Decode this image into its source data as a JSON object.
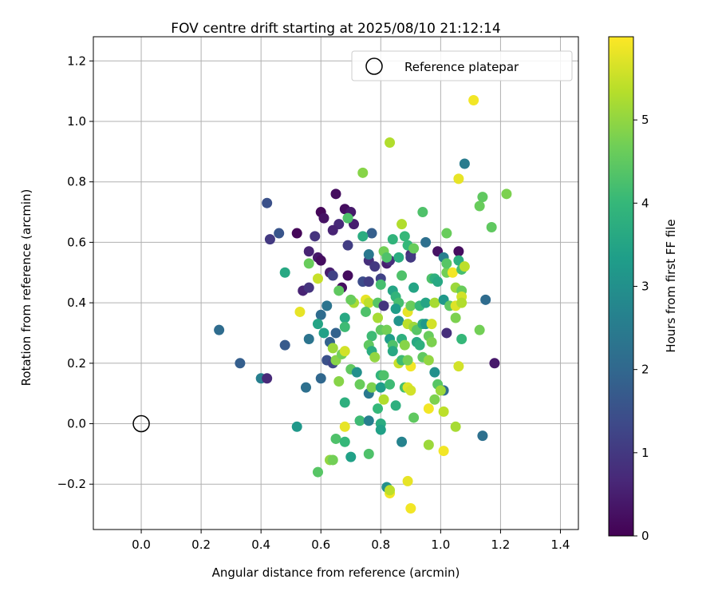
{
  "chart_data": {
    "type": "scatter",
    "title": "FOV centre drift starting at 2025/08/10 21:12:14",
    "xlabel": "Angular distance from reference (arcmin)",
    "ylabel": "Rotation from reference (arcmin)",
    "xlim": [
      -0.16,
      1.46
    ],
    "ylim": [
      -0.35,
      1.28
    ],
    "xticks": [
      0.0,
      0.2,
      0.4,
      0.6,
      0.8,
      1.0,
      1.2,
      1.4
    ],
    "xtick_labels": [
      "0.0",
      "0.2",
      "0.4",
      "0.6",
      "0.8",
      "1.0",
      "1.2",
      "1.4"
    ],
    "yticks": [
      -0.2,
      0.0,
      0.2,
      0.4,
      0.6,
      0.8,
      1.0,
      1.2
    ],
    "ytick_labels": [
      "−0.2",
      "0.0",
      "0.2",
      "0.4",
      "0.6",
      "0.8",
      "1.0",
      "1.2"
    ],
    "grid": true,
    "legend": {
      "placement": "top-right",
      "entries": [
        "Reference platepar"
      ]
    },
    "reference_point": {
      "x": 0.0,
      "y": 0.0,
      "label": "Reference platepar"
    },
    "colorbar": {
      "label": "Hours from first FF file",
      "colormap": "viridis",
      "range": [
        0,
        6
      ],
      "ticks": [
        0,
        1,
        2,
        3,
        4,
        5
      ],
      "tick_labels": [
        "0",
        "1",
        "2",
        "3",
        "4",
        "5"
      ]
    },
    "colormap_stops": [
      "#440154",
      "#482878",
      "#3e4989",
      "#31688e",
      "#26828e",
      "#1f9e89",
      "#35b779",
      "#6ece58",
      "#b5de2b",
      "#fde725"
    ],
    "points": [
      {
        "x": 0.65,
        "y": 0.76,
        "c": 0.2
      },
      {
        "x": 0.6,
        "y": 0.7,
        "c": 0.1
      },
      {
        "x": 0.61,
        "y": 0.68,
        "c": 0.3
      },
      {
        "x": 0.68,
        "y": 0.71,
        "c": 0.2
      },
      {
        "x": 0.7,
        "y": 0.7,
        "c": 0.4
      },
      {
        "x": 0.66,
        "y": 0.66,
        "c": 0.7
      },
      {
        "x": 0.71,
        "y": 0.66,
        "c": 0.5
      },
      {
        "x": 0.64,
        "y": 0.64,
        "c": 0.6
      },
      {
        "x": 0.52,
        "y": 0.63,
        "c": 0.1
      },
      {
        "x": 0.58,
        "y": 0.62,
        "c": 0.9
      },
      {
        "x": 0.43,
        "y": 0.61,
        "c": 1.0
      },
      {
        "x": 0.46,
        "y": 0.63,
        "c": 1.6
      },
      {
        "x": 0.42,
        "y": 0.73,
        "c": 1.5
      },
      {
        "x": 0.69,
        "y": 0.59,
        "c": 1.1
      },
      {
        "x": 0.56,
        "y": 0.57,
        "c": 0.6
      },
      {
        "x": 0.59,
        "y": 0.55,
        "c": 0.4
      },
      {
        "x": 0.6,
        "y": 0.54,
        "c": 0.2
      },
      {
        "x": 0.63,
        "y": 0.5,
        "c": 0.5
      },
      {
        "x": 0.64,
        "y": 0.49,
        "c": 1.2
      },
      {
        "x": 0.69,
        "y": 0.49,
        "c": 0.2
      },
      {
        "x": 0.74,
        "y": 0.47,
        "c": 1.4
      },
      {
        "x": 0.76,
        "y": 0.47,
        "c": 1.1
      },
      {
        "x": 0.76,
        "y": 0.54,
        "c": 0.8
      },
      {
        "x": 0.78,
        "y": 0.52,
        "c": 1.0
      },
      {
        "x": 0.77,
        "y": 0.63,
        "c": 1.8
      },
      {
        "x": 0.76,
        "y": 0.56,
        "c": 2.4
      },
      {
        "x": 0.8,
        "y": 0.48,
        "c": 1.2
      },
      {
        "x": 0.82,
        "y": 0.53,
        "c": 0.5
      },
      {
        "x": 0.83,
        "y": 0.54,
        "c": 0.8
      },
      {
        "x": 0.9,
        "y": 0.56,
        "c": 0.7
      },
      {
        "x": 0.9,
        "y": 0.55,
        "c": 1.0
      },
      {
        "x": 0.95,
        "y": 0.6,
        "c": 2.2
      },
      {
        "x": 0.99,
        "y": 0.57,
        "c": 0.3
      },
      {
        "x": 1.01,
        "y": 0.55,
        "c": 2.6
      },
      {
        "x": 1.06,
        "y": 0.57,
        "c": 0.2
      },
      {
        "x": 1.08,
        "y": 0.86,
        "c": 2.5
      },
      {
        "x": 1.15,
        "y": 0.41,
        "c": 2.1
      },
      {
        "x": 1.18,
        "y": 0.2,
        "c": 0.4
      },
      {
        "x": 1.14,
        "y": -0.04,
        "c": 2.2
      },
      {
        "x": 1.01,
        "y": 0.11,
        "c": 2.1
      },
      {
        "x": 1.02,
        "y": 0.3,
        "c": 0.8
      },
      {
        "x": 0.54,
        "y": 0.44,
        "c": 0.6
      },
      {
        "x": 0.56,
        "y": 0.45,
        "c": 0.9
      },
      {
        "x": 0.62,
        "y": 0.39,
        "c": 2.3
      },
      {
        "x": 0.6,
        "y": 0.36,
        "c": 2.1
      },
      {
        "x": 0.65,
        "y": 0.3,
        "c": 1.9
      },
      {
        "x": 0.67,
        "y": 0.45,
        "c": 0.2
      },
      {
        "x": 0.26,
        "y": 0.31,
        "c": 2.1
      },
      {
        "x": 0.33,
        "y": 0.2,
        "c": 1.8
      },
      {
        "x": 0.4,
        "y": 0.15,
        "c": 2.6
      },
      {
        "x": 0.42,
        "y": 0.15,
        "c": 0.7
      },
      {
        "x": 0.48,
        "y": 0.26,
        "c": 1.7
      },
      {
        "x": 0.55,
        "y": 0.12,
        "c": 2.2
      },
      {
        "x": 0.6,
        "y": 0.15,
        "c": 2.0
      },
      {
        "x": 0.56,
        "y": 0.28,
        "c": 2.3
      },
      {
        "x": 0.63,
        "y": 0.27,
        "c": 1.9
      },
      {
        "x": 0.62,
        "y": 0.21,
        "c": 1.5
      },
      {
        "x": 0.64,
        "y": 0.2,
        "c": 1.3
      },
      {
        "x": 0.48,
        "y": 0.5,
        "c": 3.6
      },
      {
        "x": 0.52,
        "y": -0.01,
        "c": 3.2
      },
      {
        "x": 0.56,
        "y": 0.53,
        "c": 4.6
      },
      {
        "x": 0.59,
        "y": 0.48,
        "c": 5.5
      },
      {
        "x": 0.53,
        "y": 0.37,
        "c": 5.8
      },
      {
        "x": 0.59,
        "y": 0.33,
        "c": 3.5
      },
      {
        "x": 0.61,
        "y": 0.3,
        "c": 3.4
      },
      {
        "x": 0.64,
        "y": 0.25,
        "c": 5.1
      },
      {
        "x": 0.65,
        "y": 0.21,
        "c": 4.9
      },
      {
        "x": 0.66,
        "y": 0.44,
        "c": 4.5
      },
      {
        "x": 0.68,
        "y": 0.35,
        "c": 3.6
      },
      {
        "x": 0.68,
        "y": 0.32,
        "c": 4.1
      },
      {
        "x": 0.67,
        "y": 0.23,
        "c": 4.7
      },
      {
        "x": 0.68,
        "y": 0.24,
        "c": 5.6
      },
      {
        "x": 0.66,
        "y": 0.14,
        "c": 4.9
      },
      {
        "x": 0.68,
        "y": 0.07,
        "c": 3.8
      },
      {
        "x": 0.68,
        "y": -0.01,
        "c": 5.8
      },
      {
        "x": 0.65,
        "y": -0.05,
        "c": 4.3
      },
      {
        "x": 0.68,
        "y": -0.06,
        "c": 4.0
      },
      {
        "x": 0.63,
        "y": -0.12,
        "c": 5.0
      },
      {
        "x": 0.64,
        "y": -0.12,
        "c": 4.7
      },
      {
        "x": 0.59,
        "y": -0.16,
        "c": 4.4
      },
      {
        "x": 0.7,
        "y": -0.11,
        "c": 3.4
      },
      {
        "x": 0.7,
        "y": 0.18,
        "c": 4.5
      },
      {
        "x": 0.71,
        "y": 0.4,
        "c": 5.2
      },
      {
        "x": 0.7,
        "y": 0.41,
        "c": 4.6
      },
      {
        "x": 0.72,
        "y": 0.17,
        "c": 3.0
      },
      {
        "x": 0.73,
        "y": 0.13,
        "c": 4.6
      },
      {
        "x": 0.73,
        "y": 0.01,
        "c": 4.1
      },
      {
        "x": 0.74,
        "y": 0.83,
        "c": 4.9
      },
      {
        "x": 0.74,
        "y": 0.62,
        "c": 3.7
      },
      {
        "x": 0.69,
        "y": 0.68,
        "c": 4.3
      },
      {
        "x": 0.75,
        "y": 0.41,
        "c": 5.8
      },
      {
        "x": 0.76,
        "y": 0.4,
        "c": 5.4
      },
      {
        "x": 0.75,
        "y": 0.37,
        "c": 4.3
      },
      {
        "x": 0.77,
        "y": 0.29,
        "c": 4.1
      },
      {
        "x": 0.76,
        "y": 0.26,
        "c": 4.5
      },
      {
        "x": 0.77,
        "y": 0.24,
        "c": 3.7
      },
      {
        "x": 0.78,
        "y": 0.22,
        "c": 5.0
      },
      {
        "x": 0.76,
        "y": 0.1,
        "c": 2.4
      },
      {
        "x": 0.77,
        "y": 0.12,
        "c": 4.8
      },
      {
        "x": 0.76,
        "y": 0.01,
        "c": 2.6
      },
      {
        "x": 0.76,
        "y": -0.1,
        "c": 4.3
      },
      {
        "x": 0.79,
        "y": 0.05,
        "c": 4.0
      },
      {
        "x": 0.8,
        "y": 0.16,
        "c": 3.9
      },
      {
        "x": 0.81,
        "y": 0.16,
        "c": 4.3
      },
      {
        "x": 0.8,
        "y": 0.12,
        "c": 3.3
      },
      {
        "x": 0.81,
        "y": 0.08,
        "c": 5.3
      },
      {
        "x": 0.8,
        "y": 0.0,
        "c": 3.7
      },
      {
        "x": 0.8,
        "y": -0.02,
        "c": 3.4
      },
      {
        "x": 0.82,
        "y": -0.21,
        "c": 3.0
      },
      {
        "x": 0.83,
        "y": -0.23,
        "c": 5.9
      },
      {
        "x": 0.83,
        "y": -0.22,
        "c": 5.4
      },
      {
        "x": 0.8,
        "y": 0.46,
        "c": 4.2
      },
      {
        "x": 0.79,
        "y": 0.4,
        "c": 4.4
      },
      {
        "x": 0.79,
        "y": 0.35,
        "c": 5.2
      },
      {
        "x": 0.8,
        "y": 0.31,
        "c": 4.5
      },
      {
        "x": 0.81,
        "y": 0.39,
        "c": 0.9
      },
      {
        "x": 0.82,
        "y": 0.31,
        "c": 4.7
      },
      {
        "x": 0.83,
        "y": 0.28,
        "c": 3.3
      },
      {
        "x": 0.84,
        "y": 0.26,
        "c": 4.3
      },
      {
        "x": 0.84,
        "y": 0.24,
        "c": 3.6
      },
      {
        "x": 0.83,
        "y": 0.13,
        "c": 4.1
      },
      {
        "x": 0.85,
        "y": 0.06,
        "c": 3.8
      },
      {
        "x": 0.83,
        "y": 0.93,
        "c": 5.3
      },
      {
        "x": 0.81,
        "y": 0.57,
        "c": 4.7
      },
      {
        "x": 0.82,
        "y": 0.55,
        "c": 4.3
      },
      {
        "x": 0.84,
        "y": 0.61,
        "c": 3.9
      },
      {
        "x": 0.86,
        "y": 0.55,
        "c": 3.7
      },
      {
        "x": 0.87,
        "y": 0.66,
        "c": 5.3
      },
      {
        "x": 0.88,
        "y": 0.62,
        "c": 4.0
      },
      {
        "x": 0.84,
        "y": 0.44,
        "c": 3.5
      },
      {
        "x": 0.85,
        "y": 0.42,
        "c": 3.9
      },
      {
        "x": 0.86,
        "y": 0.4,
        "c": 4.2
      },
      {
        "x": 0.85,
        "y": 0.38,
        "c": 3.3
      },
      {
        "x": 0.87,
        "y": 0.49,
        "c": 4.3
      },
      {
        "x": 0.86,
        "y": 0.34,
        "c": 3.1
      },
      {
        "x": 0.87,
        "y": 0.28,
        "c": 3.8
      },
      {
        "x": 0.86,
        "y": 0.2,
        "c": 5.5
      },
      {
        "x": 0.88,
        "y": 0.26,
        "c": 4.9
      },
      {
        "x": 0.87,
        "y": 0.21,
        "c": 4.1
      },
      {
        "x": 0.87,
        "y": -0.06,
        "c": 2.7
      },
      {
        "x": 0.88,
        "y": 0.12,
        "c": 4.2
      },
      {
        "x": 0.89,
        "y": 0.12,
        "c": 5.7
      },
      {
        "x": 0.9,
        "y": 0.11,
        "c": 5.6
      },
      {
        "x": 0.89,
        "y": -0.19,
        "c": 5.8
      },
      {
        "x": 0.9,
        "y": -0.28,
        "c": 5.9
      },
      {
        "x": 0.9,
        "y": 0.19,
        "c": 5.9
      },
      {
        "x": 0.89,
        "y": 0.21,
        "c": 4.7
      },
      {
        "x": 0.89,
        "y": 0.37,
        "c": 5.8
      },
      {
        "x": 0.89,
        "y": 0.33,
        "c": 5.4
      },
      {
        "x": 0.9,
        "y": 0.39,
        "c": 4.6
      },
      {
        "x": 0.89,
        "y": 0.59,
        "c": 4.0
      },
      {
        "x": 0.91,
        "y": 0.58,
        "c": 4.6
      },
      {
        "x": 0.91,
        "y": 0.45,
        "c": 3.5
      },
      {
        "x": 0.91,
        "y": 0.32,
        "c": 5.1
      },
      {
        "x": 0.92,
        "y": 0.31,
        "c": 4.4
      },
      {
        "x": 0.92,
        "y": 0.27,
        "c": 3.6
      },
      {
        "x": 0.93,
        "y": 0.26,
        "c": 3.8
      },
      {
        "x": 0.91,
        "y": 0.02,
        "c": 4.5
      },
      {
        "x": 0.93,
        "y": 0.39,
        "c": 4.0
      },
      {
        "x": 0.94,
        "y": 0.33,
        "c": 3.7
      },
      {
        "x": 0.94,
        "y": 0.22,
        "c": 4.5
      },
      {
        "x": 0.94,
        "y": 0.7,
        "c": 4.3
      },
      {
        "x": 0.95,
        "y": 0.4,
        "c": 3.5
      },
      {
        "x": 0.95,
        "y": 0.33,
        "c": 3.2
      },
      {
        "x": 0.96,
        "y": 0.29,
        "c": 4.6
      },
      {
        "x": 0.96,
        "y": 0.21,
        "c": 5.0
      },
      {
        "x": 0.96,
        "y": 0.05,
        "c": 5.9
      },
      {
        "x": 0.96,
        "y": -0.07,
        "c": 5.1
      },
      {
        "x": 0.97,
        "y": 0.48,
        "c": 4.3
      },
      {
        "x": 0.97,
        "y": 0.33,
        "c": 5.6
      },
      {
        "x": 0.97,
        "y": 0.27,
        "c": 4.8
      },
      {
        "x": 0.98,
        "y": 0.4,
        "c": 5.2
      },
      {
        "x": 0.98,
        "y": 0.17,
        "c": 3.0
      },
      {
        "x": 0.98,
        "y": 0.08,
        "c": 4.8
      },
      {
        "x": 0.98,
        "y": 0.48,
        "c": 3.8
      },
      {
        "x": 0.99,
        "y": 0.47,
        "c": 3.6
      },
      {
        "x": 0.99,
        "y": 0.13,
        "c": 4.4
      },
      {
        "x": 1.0,
        "y": 0.11,
        "c": 5.1
      },
      {
        "x": 1.01,
        "y": 0.41,
        "c": 3.2
      },
      {
        "x": 1.01,
        "y": 0.04,
        "c": 5.4
      },
      {
        "x": 1.01,
        "y": -0.09,
        "c": 5.9
      },
      {
        "x": 1.02,
        "y": 0.5,
        "c": 4.7
      },
      {
        "x": 1.02,
        "y": 0.53,
        "c": 4.4
      },
      {
        "x": 1.02,
        "y": 0.63,
        "c": 4.6
      },
      {
        "x": 1.03,
        "y": 0.39,
        "c": 4.5
      },
      {
        "x": 1.04,
        "y": 0.5,
        "c": 5.9
      },
      {
        "x": 1.05,
        "y": 0.45,
        "c": 5.1
      },
      {
        "x": 1.05,
        "y": 0.39,
        "c": 5.7
      },
      {
        "x": 1.05,
        "y": 0.35,
        "c": 4.8
      },
      {
        "x": 1.05,
        "y": -0.01,
        "c": 5.2
      },
      {
        "x": 1.06,
        "y": 0.81,
        "c": 5.8
      },
      {
        "x": 1.06,
        "y": 0.54,
        "c": 3.8
      },
      {
        "x": 1.06,
        "y": 0.19,
        "c": 5.6
      },
      {
        "x": 1.07,
        "y": 0.51,
        "c": 4.2
      },
      {
        "x": 1.07,
        "y": 0.44,
        "c": 4.6
      },
      {
        "x": 1.07,
        "y": 0.42,
        "c": 5.6
      },
      {
        "x": 1.07,
        "y": 0.4,
        "c": 5.3
      },
      {
        "x": 1.07,
        "y": 0.28,
        "c": 4.0
      },
      {
        "x": 1.08,
        "y": 0.52,
        "c": 5.4
      },
      {
        "x": 1.11,
        "y": 1.07,
        "c": 5.9
      },
      {
        "x": 1.13,
        "y": 0.72,
        "c": 4.6
      },
      {
        "x": 1.14,
        "y": 0.75,
        "c": 4.5
      },
      {
        "x": 1.13,
        "y": 0.31,
        "c": 4.7
      },
      {
        "x": 1.17,
        "y": 0.65,
        "c": 4.5
      },
      {
        "x": 1.22,
        "y": 0.76,
        "c": 4.8
      }
    ]
  }
}
